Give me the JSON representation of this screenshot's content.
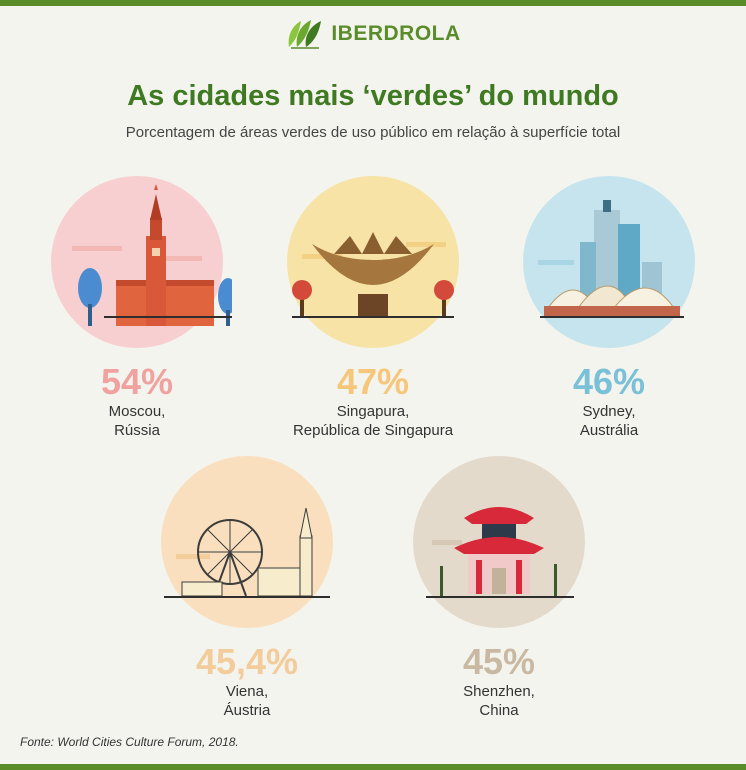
{
  "brand": {
    "name": "IBERDROLA",
    "color": "#5b8c2a"
  },
  "header": {
    "title": "As cidades mais ‘verdes’ do mundo",
    "subtitle": "Porcentagem de áreas verdes de uso público em relação à superfície total"
  },
  "cities": [
    {
      "percent": "54%",
      "city": "Moscou,",
      "country": "Rússia",
      "color": "#f0a2a0",
      "circle": "#f7cfd0",
      "icon": "kremlin-icon"
    },
    {
      "percent": "47%",
      "city": "Singapura,",
      "country": "República de Singapura",
      "color": "#f6c67a",
      "circle": "#f7e3a6",
      "icon": "artscience-museum-icon"
    },
    {
      "percent": "46%",
      "city": "Sydney,",
      "country": "Austrália",
      "color": "#7ac0d8",
      "circle": "#c6e4ee",
      "icon": "opera-house-icon"
    },
    {
      "percent": "45,4%",
      "city": "Viena,",
      "country": "Áustria",
      "color": "#f3cc9c",
      "circle": "#f9dfbe",
      "icon": "ferris-wheel-icon"
    },
    {
      "percent": "45%",
      "city": "Shenzhen,",
      "country": "China",
      "color": "#c9b9a3",
      "circle": "#e4dacc",
      "icon": "pagoda-icon"
    }
  ],
  "footer": {
    "source": "Fonte: World Cities Culture Forum, 2018."
  }
}
